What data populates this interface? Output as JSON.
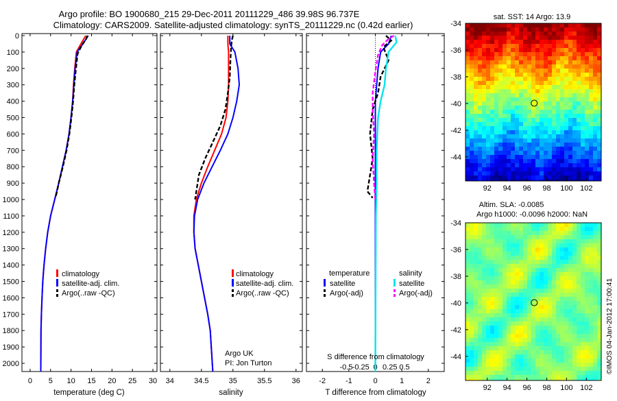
{
  "header": {
    "line1": "Argo profile: BO 1900680_215 29-Dec-2011 20111229_486 39.98S 96.737E",
    "line2": "Climatology: CARS2009. Satellite-adjusted climatology: synTS_20111229.nc (0.42d earlier)"
  },
  "credit": {
    "line1": "Argo UK",
    "line2": "PI: Jon Turton"
  },
  "stamp": "©IMOS 04-Jan-2012 17:00:41",
  "colors": {
    "climatology": "#ff0000",
    "satellite": "#0000ff",
    "argo": "#000000",
    "salinity_satellite": "#00e5ee",
    "argo_adj": "#ff00ff"
  },
  "depth_axis": {
    "ylim": [
      0,
      2050
    ],
    "ticks": [
      "0",
      "100",
      "200",
      "300",
      "400",
      "500",
      "600",
      "700",
      "800",
      "900",
      "1000",
      "1100",
      "1200",
      "1300",
      "1400",
      "1500",
      "1600",
      "1700",
      "1800",
      "1900",
      "2000"
    ]
  },
  "chart_data": [
    {
      "type": "line",
      "xlabel": "temperature (deg C)",
      "ylabel": "",
      "xlim": [
        -2,
        31
      ],
      "ylim": [
        2050,
        0
      ],
      "xticks": [
        "0",
        "5",
        "10",
        "15",
        "20",
        "25",
        "30"
      ],
      "legend": [
        "climatology",
        "satellite-adj. clim.",
        "Argo(..raw -QC)"
      ],
      "series": [
        {
          "name": "climatology",
          "x": [
            13.6,
            12.4,
            11.3,
            10.9,
            10.6,
            10.4,
            10.0,
            9.5,
            8.8,
            7.9,
            7.0,
            6.0,
            5.0,
            4.3,
            3.8,
            3.4,
            3.1,
            2.9,
            2.75,
            2.65,
            2.6
          ],
          "y": [
            0,
            50,
            100,
            200,
            300,
            400,
            500,
            600,
            700,
            800,
            900,
            1000,
            1100,
            1200,
            1300,
            1400,
            1500,
            1600,
            1700,
            1800,
            2050
          ]
        },
        {
          "name": "satellite-adj. clim.",
          "x": [
            14.2,
            12.9,
            11.5,
            11.0,
            10.7,
            10.4,
            10.0,
            9.5,
            8.8,
            7.9,
            7.0,
            6.0,
            5.0,
            4.3,
            3.8,
            3.4,
            3.1,
            2.9,
            2.75,
            2.65,
            2.6
          ],
          "y": [
            0,
            50,
            100,
            200,
            300,
            400,
            500,
            600,
            700,
            800,
            900,
            1000,
            1100,
            1200,
            1300,
            1400,
            1500,
            1600,
            1700,
            1800,
            2050
          ]
        },
        {
          "name": "Argo(..raw -QC)",
          "x": [
            14.0,
            13.7,
            12.6,
            11.6,
            11.2,
            10.8,
            10.5,
            10.1,
            9.6,
            8.9,
            8.0,
            7.0,
            6.2
          ],
          "y": [
            0,
            20,
            60,
            110,
            200,
            300,
            400,
            500,
            600,
            700,
            800,
            900,
            990
          ]
        }
      ]
    },
    {
      "type": "line",
      "xlabel": "salinity",
      "ylabel": "",
      "xlim": [
        33.85,
        36.1
      ],
      "ylim": [
        2050,
        0
      ],
      "xticks": [
        "34",
        "34.5",
        "35",
        "35.5",
        "36"
      ],
      "legend": [
        "climatology",
        "satellite-adj. clim.",
        "Argo(..raw -QC)"
      ],
      "series": [
        {
          "name": "climatology",
          "x": [
            34.92,
            34.92,
            34.93,
            34.93,
            34.93,
            34.92,
            34.89,
            34.82,
            34.71,
            34.6,
            34.5,
            34.42,
            34.38,
            34.38,
            34.4,
            34.45,
            34.5,
            34.55,
            34.6,
            34.64,
            34.68
          ],
          "y": [
            0,
            50,
            100,
            200,
            300,
            400,
            500,
            600,
            700,
            800,
            900,
            1000,
            1100,
            1200,
            1300,
            1400,
            1500,
            1600,
            1700,
            1800,
            2050
          ]
        },
        {
          "name": "satellite-adj. clim.",
          "x": [
            34.95,
            34.95,
            35.03,
            35.08,
            35.1,
            35.06,
            35.0,
            34.92,
            34.8,
            34.67,
            34.54,
            34.44,
            34.39,
            34.38,
            34.4,
            34.45,
            34.5,
            34.55,
            34.6,
            34.64,
            34.68
          ],
          "y": [
            0,
            50,
            100,
            200,
            300,
            400,
            500,
            600,
            700,
            800,
            900,
            1000,
            1100,
            1200,
            1300,
            1400,
            1500,
            1600,
            1700,
            1800,
            2050
          ]
        },
        {
          "name": "Argo(..raw -QC)",
          "x": [
            35.0,
            34.98,
            34.97,
            34.96,
            34.95,
            34.92,
            34.88,
            34.8,
            34.68,
            34.56,
            34.46,
            34.4
          ],
          "y": [
            0,
            30,
            80,
            150,
            250,
            350,
            450,
            550,
            650,
            750,
            850,
            1000
          ]
        }
      ]
    },
    {
      "type": "line",
      "xlabel": "T difference from climatology",
      "xlabel_top": "S difference from climatology",
      "ylabel": "",
      "xlim": [
        -2.6,
        2.6
      ],
      "ylim": [
        2050,
        0
      ],
      "xticks": [
        "-2",
        "-1",
        "0",
        "1",
        "2"
      ],
      "xticks_top": [
        "-0.5",
        "-0.25",
        "0",
        "0.25",
        "0.5"
      ],
      "legend_groups": [
        "temperature",
        "salinity"
      ],
      "legend": [
        "satellite",
        "Argo(-adj)",
        "satellite",
        "Argo(-adj)"
      ],
      "series": [
        {
          "name": "satellite",
          "group": "temperature",
          "x": [
            0.6,
            0.5,
            0.2,
            0.1,
            0.05,
            0.0,
            0.0,
            0.0,
            0.0,
            0.0,
            0.0,
            0.0
          ],
          "y": [
            0,
            50,
            100,
            200,
            300,
            400,
            500,
            700,
            900,
            1100,
            1500,
            2050
          ]
        },
        {
          "name": "Argo(-adj)",
          "group": "temperature",
          "x": [
            0.4,
            0.6,
            0.3,
            0.5,
            0.2,
            0.1,
            -0.1,
            -0.2,
            -0.1,
            -0.2,
            -0.3,
            -0.1
          ],
          "y": [
            0,
            30,
            70,
            150,
            250,
            350,
            450,
            600,
            750,
            850,
            950,
            990
          ]
        },
        {
          "name": "satellite",
          "group": "salinity",
          "x": [
            0.75,
            0.8,
            0.5,
            0.4,
            0.35,
            0.2,
            0.1,
            0.05,
            0.05,
            0.02,
            0.01,
            0.0
          ],
          "y": [
            0,
            40,
            100,
            200,
            300,
            400,
            500,
            700,
            900,
            1100,
            1500,
            2050
          ]
        },
        {
          "name": "Argo(-adj)",
          "group": "salinity",
          "x": [
            0.7,
            0.5,
            0.25,
            0.1,
            0.0,
            -0.1,
            -0.1,
            -0.05,
            -0.1,
            -0.05,
            0.0
          ],
          "y": [
            0,
            20,
            60,
            120,
            220,
            350,
            450,
            600,
            750,
            900,
            1000
          ]
        }
      ]
    },
    {
      "type": "heatmap",
      "title": "sat. SST: 14  Argo: 13.9",
      "xlim": [
        89.8,
        103.5
      ],
      "ylim": [
        -45.8,
        -34
      ],
      "xticks": [
        "92",
        "94",
        "96",
        "98",
        "100",
        "102"
      ],
      "yticks": [
        "-34",
        "-36",
        "-38",
        "-40",
        "-42",
        "-44"
      ],
      "marker": {
        "lon": 96.737,
        "lat": -39.98
      }
    },
    {
      "type": "heatmap",
      "title_line1": "Altim. SLA: -0.0085",
      "title_line2": "Argo h1000: -0.0096  h2000: NaN",
      "xlim": [
        89.8,
        103.5
      ],
      "ylim": [
        -45.8,
        -34
      ],
      "xticks": [
        "92",
        "94",
        "96",
        "98",
        "100",
        "102"
      ],
      "yticks": [
        "-34",
        "-36",
        "-38",
        "-40",
        "-42",
        "-44"
      ],
      "marker": {
        "lon": 96.737,
        "lat": -39.98
      }
    }
  ]
}
